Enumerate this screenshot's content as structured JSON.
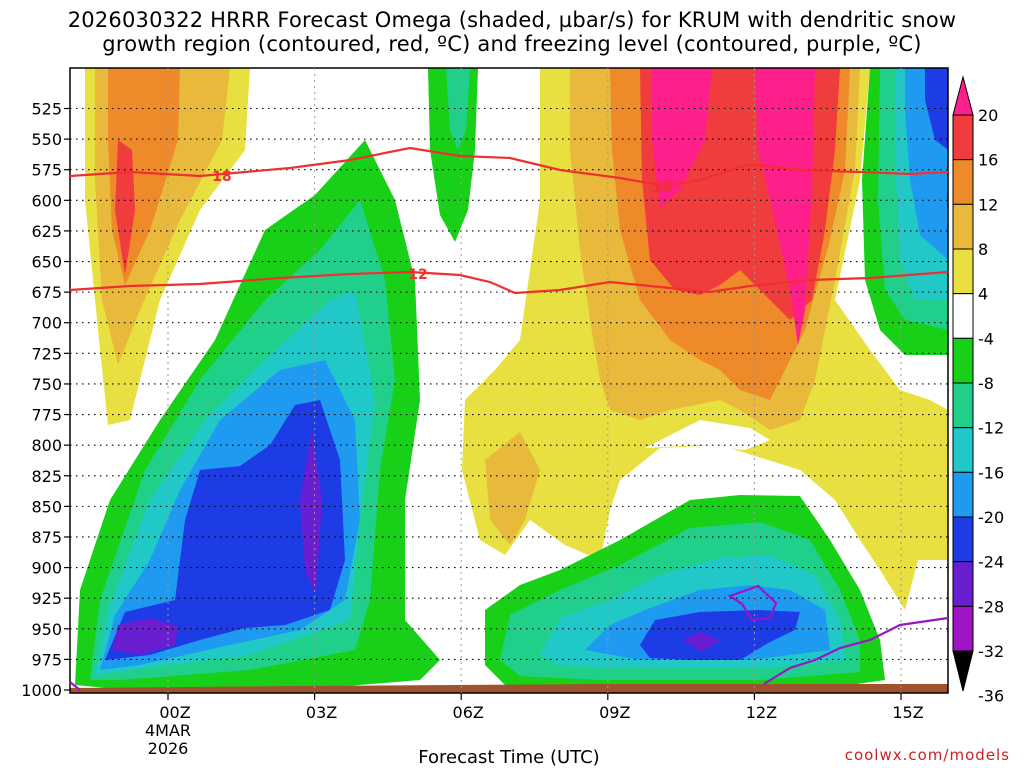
{
  "title": {
    "line1": "2026030322 HRRR Forecast Omega (shaded, µbar/s) for KRUM with dendritic snow",
    "line2": "growth region (contoured, red, ºC) and freezing level (contoured, purple, ºC)"
  },
  "credit": "coolwx.com/models",
  "chart_data": {
    "type": "heatmap",
    "xlabel": "Forecast Time (UTC)",
    "ylabel": "",
    "x_ticks": [
      "00Z",
      "03Z",
      "06Z",
      "09Z",
      "12Z",
      "15Z"
    ],
    "x_date_label": [
      "4MAR",
      "2026"
    ],
    "y_ticks": [
      "525",
      "550",
      "575",
      "600",
      "625",
      "650",
      "675",
      "700",
      "725",
      "750",
      "775",
      "800",
      "825",
      "850",
      "875",
      "900",
      "925",
      "950",
      "975",
      "1000"
    ],
    "colorbar_ticks": [
      "20",
      "16",
      "12",
      "8",
      "4",
      "-4",
      "-8",
      "-12",
      "-16",
      "-20",
      "-24",
      "-28",
      "-32",
      "-36"
    ],
    "colorbar_colors": [
      "#ff1f8a",
      "#f03c3c",
      "#ef8a2a",
      "#e8b93a",
      "#e8e040",
      "#ffffff",
      "#18d018",
      "#20d08a",
      "#20c8c8",
      "#1e9bf0",
      "#1e3ce6",
      "#6a1ed2",
      "#a014c8",
      "#a0a0a0",
      "#000000"
    ],
    "contour_labels": [
      "18",
      "12"
    ],
    "contour_colors": {
      "dendritic": "#ee3030",
      "freezing": "#9a14c8"
    }
  }
}
